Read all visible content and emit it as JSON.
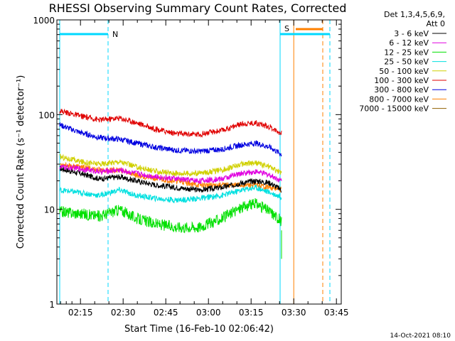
{
  "chart_data": {
    "type": "line",
    "title": "RHESSI Observing Summary Count Rates, Corrected",
    "xlabel": "Start Time (16-Feb-10 02:06:42)",
    "ylabel": "Corrected Count Rate (s⁻¹ detector⁻¹)",
    "xlim_minutes": [
      0,
      100
    ],
    "ylim": [
      1,
      1000
    ],
    "yscale": "log",
    "x_ticks": [
      {
        "label": "02:15",
        "min": 8.3
      },
      {
        "label": "02:30",
        "min": 23.3
      },
      {
        "label": "02:45",
        "min": 38.3
      },
      {
        "label": "03:00",
        "min": 53.3
      },
      {
        "label": "03:15",
        "min": 68.3
      },
      {
        "label": "03:30",
        "min": 83.3
      },
      {
        "label": "03:45",
        "min": 98.3
      }
    ],
    "y_ticks": [
      {
        "label": "1",
        "v": 1
      },
      {
        "label": "10",
        "v": 10
      },
      {
        "label": "100",
        "v": 100
      },
      {
        "label": "1000",
        "v": 1000
      }
    ],
    "legend": {
      "header_line1": "Det 1,3,4,5,6,9,",
      "header_line2": "Att 0",
      "placement": "right"
    },
    "series": [
      {
        "name": "3 - 6 keV",
        "color": "#000000",
        "x": [
          1,
          8,
          15,
          22,
          28,
          35,
          42,
          50,
          58,
          65,
          70,
          75,
          79
        ],
        "y": [
          27,
          24,
          21,
          22,
          20,
          18,
          17,
          16,
          17,
          19,
          20,
          19,
          16
        ]
      },
      {
        "name": "6 - 12 keV",
        "color": "#e000e0",
        "x": [
          1,
          8,
          15,
          22,
          28,
          35,
          42,
          50,
          58,
          65,
          70,
          75,
          79
        ],
        "y": [
          28,
          27,
          25,
          26,
          24,
          22,
          21,
          20,
          21,
          24,
          25,
          23,
          20
        ]
      },
      {
        "name": "12 - 25 keV",
        "color": "#00e000",
        "x": [
          1,
          8,
          15,
          22,
          28,
          35,
          42,
          50,
          58,
          65,
          70,
          75,
          79
        ],
        "y": [
          9.5,
          9,
          8.5,
          10,
          8,
          7,
          6.5,
          6.5,
          8,
          10.5,
          11.5,
          9.5,
          7.5
        ]
      },
      {
        "name": "25 - 50 keV",
        "color": "#00e0e0",
        "x": [
          1,
          8,
          15,
          22,
          28,
          35,
          42,
          50,
          58,
          65,
          70,
          75,
          79
        ],
        "y": [
          16,
          15,
          14,
          16,
          14,
          13,
          12.5,
          13,
          14,
          16,
          17,
          15,
          13.5
        ]
      },
      {
        "name": "50 - 100 keV",
        "color": "#d0d000",
        "x": [
          1,
          8,
          15,
          22,
          28,
          35,
          42,
          50,
          58,
          65,
          70,
          75,
          79
        ],
        "y": [
          36,
          32,
          30,
          32,
          28,
          25,
          24,
          24,
          26,
          30,
          31,
          28,
          24
        ]
      },
      {
        "name": "100 - 300 keV",
        "color": "#e00000",
        "x": [
          1,
          8,
          15,
          22,
          28,
          35,
          42,
          50,
          58,
          65,
          70,
          75,
          79
        ],
        "y": [
          110,
          97,
          88,
          92,
          82,
          70,
          63,
          62,
          68,
          80,
          82,
          74,
          63
        ]
      },
      {
        "name": "300 - 800 keV",
        "color": "#0000e0",
        "x": [
          1,
          8,
          15,
          22,
          28,
          35,
          42,
          50,
          58,
          65,
          70,
          75,
          79
        ],
        "y": [
          78,
          65,
          57,
          55,
          50,
          45,
          42,
          41,
          43,
          48,
          50,
          45,
          38
        ]
      },
      {
        "name": "800 - 7000 keV",
        "color": "#ff8000",
        "x": [
          1,
          8,
          15,
          22,
          28,
          35,
          42,
          50,
          58,
          65,
          70,
          75,
          79
        ],
        "y": [
          30,
          28,
          26,
          26,
          23,
          21,
          20,
          18,
          18,
          18,
          18,
          17,
          16
        ]
      },
      {
        "name": "7000 - 15000 keV",
        "color": "#906000",
        "x": [],
        "y": []
      }
    ],
    "grid": false
  },
  "flags": [
    {
      "label": "N",
      "color": "#00d8ff"
    },
    {
      "label": "S",
      "color": "#ff8000"
    }
  ],
  "timestamp": "14-Oct-2021 08:10"
}
